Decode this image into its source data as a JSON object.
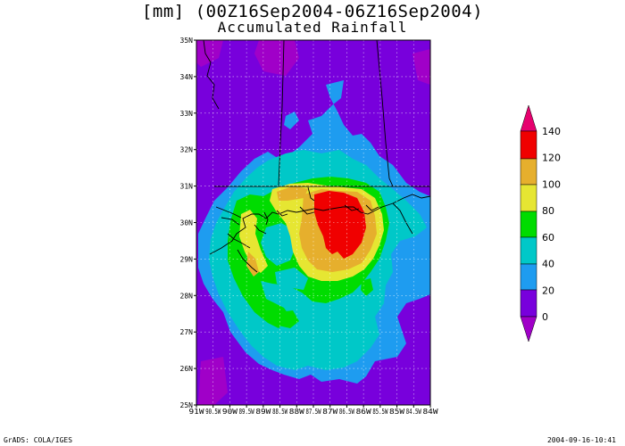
{
  "title": {
    "line1": "[mm] (00Z16Sep2004-06Z16Sep2004)",
    "line2": "Accumulated Rainfall"
  },
  "footer": {
    "left": "GrADS: COLA/IGES",
    "right": "2004-09-16-10:41"
  },
  "axes": {
    "lon_range": [
      -91,
      -84
    ],
    "lat_range": [
      25,
      35
    ],
    "lat_ticks": [
      "25N",
      "26N",
      "27N",
      "28N",
      "29N",
      "30N",
      "31N",
      "32N",
      "33N",
      "34N",
      "35N"
    ],
    "lon_ticks": [
      "91W",
      "90.5W",
      "90W",
      "89.5W",
      "89W",
      "88.5W",
      "88W",
      "87.5W",
      "87W",
      "86.5W",
      "86W",
      "85.5W",
      "85W",
      "84.5W",
      "84W"
    ],
    "grid": true
  },
  "colorbar": {
    "labels": [
      "0",
      "20",
      "40",
      "60",
      "80",
      "100",
      "120",
      "140"
    ],
    "colors": {
      "below": "#a000c8",
      "c0_20": "#7800dc",
      "c20_40": "#1e9cf0",
      "c40_60": "#00c8c8",
      "c60_80": "#00dc00",
      "c80_100": "#e6e632",
      "c100_120": "#e6af2d",
      "c120_140": "#f00000",
      "above": "#e6006e"
    }
  },
  "field": {
    "background": "#7800dc",
    "magenta_patch": "#a000c8"
  }
}
